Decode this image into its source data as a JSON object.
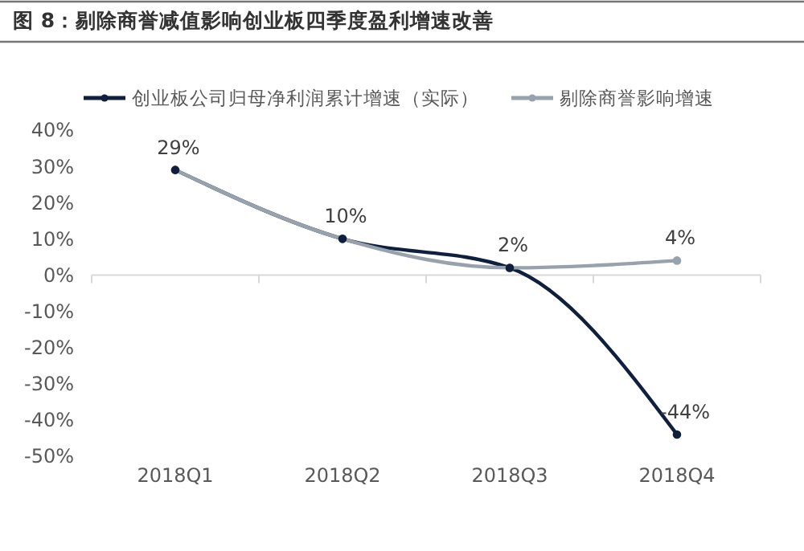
{
  "chart_data": {
    "type": "line",
    "title": "图 8：剔除商誉减值影响创业板四季度盈利增速改善",
    "categories": [
      "2018Q1",
      "2018Q2",
      "2018Q3",
      "2018Q4"
    ],
    "series": [
      {
        "name": "创业板公司归母净利润累计增速（实际）",
        "color": "#0f1f3d",
        "values": [
          29,
          10,
          2,
          -44
        ],
        "value_labels": [
          null,
          null,
          null,
          "-44%"
        ]
      },
      {
        "name": "剔除商誉影响增速",
        "color": "#98a2ad",
        "values": [
          29,
          10,
          2,
          4
        ],
        "value_labels": [
          "29%",
          "10%",
          "2%",
          "4%"
        ]
      }
    ],
    "ylim": [
      -50,
      40
    ],
    "yticks": [
      {
        "value": -50,
        "label": "-50%"
      },
      {
        "value": -40,
        "label": "-40%"
      },
      {
        "value": -30,
        "label": "-30%"
      },
      {
        "value": -20,
        "label": "-20%"
      },
      {
        "value": -10,
        "label": "-10%"
      },
      {
        "value": 0,
        "label": "0%"
      },
      {
        "value": 10,
        "label": "10%"
      },
      {
        "value": 20,
        "label": "20%"
      },
      {
        "value": 30,
        "label": "30%"
      },
      {
        "value": 40,
        "label": "40%"
      }
    ],
    "legend": "top",
    "marker": "circle",
    "line_style": "solid"
  }
}
